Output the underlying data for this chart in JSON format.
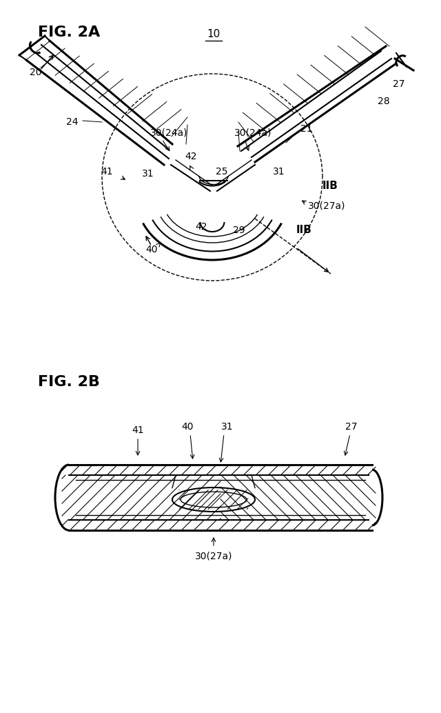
{
  "fig_labels": {
    "fig2a": "FIG. 2A",
    "fig2b": "FIG. 2B"
  },
  "label_10": "10",
  "label_20": "20",
  "label_21": "21",
  "label_24": "24",
  "label_25": "25",
  "label_27": "27",
  "label_28": "28",
  "label_29": "29",
  "label_30_24a_left": "30(24a)",
  "label_30_24a_right": "30(24a)",
  "label_30_27a": "30(27a)",
  "label_31_left": "31",
  "label_31_right": "31",
  "label_40": "40",
  "label_41": "41",
  "label_42_left": "42",
  "label_42_bottom": "42",
  "label_IIB_right": "IIB",
  "label_IIB_bottom": "IIB",
  "bg_color": "#ffffff",
  "line_color": "#000000"
}
